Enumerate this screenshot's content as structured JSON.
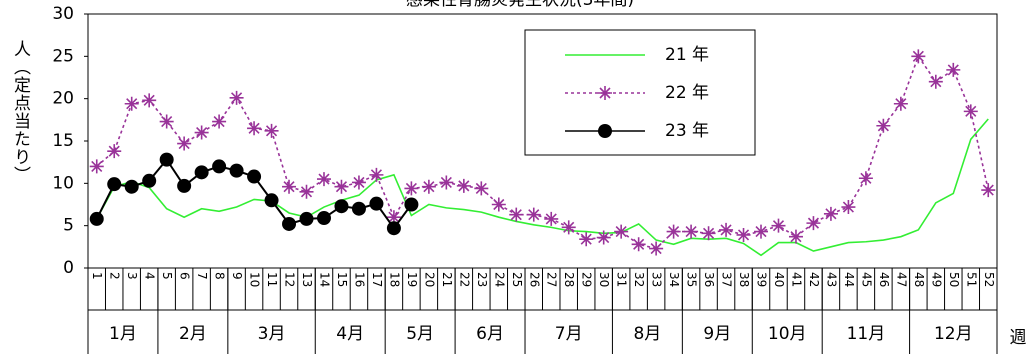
{
  "chart_data": {
    "type": "line",
    "title": "感染性胃腸炎発生状況(3年間)",
    "y_label": "人（定点当たり）",
    "x_label": "週",
    "categories": [
      "1",
      "2",
      "3",
      "4",
      "5",
      "6",
      "7",
      "8",
      "9",
      "10",
      "11",
      "12",
      "13",
      "14",
      "15",
      "16",
      "17",
      "18",
      "19",
      "20",
      "21",
      "22",
      "23",
      "24",
      "25",
      "26",
      "27",
      "28",
      "29",
      "30",
      "31",
      "32",
      "33",
      "34",
      "35",
      "36",
      "37",
      "38",
      "39",
      "40",
      "41",
      "42",
      "43",
      "44",
      "45",
      "46",
      "47",
      "48",
      "49",
      "50",
      "51",
      "52"
    ],
    "months": [
      "1月",
      null,
      null,
      null,
      "2月",
      null,
      null,
      null,
      "3月",
      null,
      null,
      null,
      null,
      "4月",
      null,
      null,
      null,
      "5月",
      null,
      null,
      null,
      "6月",
      null,
      null,
      null,
      "7月",
      null,
      null,
      null,
      null,
      "8月",
      null,
      null,
      null,
      "9月",
      null,
      null,
      null,
      "10月",
      null,
      null,
      null,
      "11月",
      null,
      null,
      null,
      null,
      "12月",
      null,
      null,
      null,
      null
    ],
    "ylim": [
      0,
      30
    ],
    "yticks": [
      0,
      5,
      10,
      15,
      20,
      25,
      30
    ],
    "series": [
      {
        "name": "21 年",
        "color": "#33ee33",
        "marker": "none",
        "values": [
          5.8,
          9.6,
          10.2,
          9.5,
          7,
          6,
          7,
          6.7,
          7.2,
          8.1,
          7.9,
          6.5,
          6,
          7.2,
          8,
          8.6,
          10.4,
          11,
          6.2,
          7.5,
          7.1,
          6.9,
          6.6,
          6,
          5.5,
          5.1,
          4.8,
          4.4,
          4.3,
          4.1,
          4.2,
          5.2,
          3.3,
          2.8,
          3.5,
          3.4,
          3.5,
          2.9,
          1.5,
          3,
          3,
          2,
          2.5,
          3,
          3.1,
          3.3,
          3.7,
          4.5,
          7.7,
          8.8,
          15.2,
          17.6
        ]
      },
      {
        "name": "22 年",
        "color": "#993399",
        "marker": "star",
        "dash": true,
        "values": [
          12,
          13.8,
          19.4,
          19.8,
          17.3,
          14.7,
          16,
          17.3,
          20.1,
          16.5,
          16.2,
          9.6,
          9,
          10.5,
          9.6,
          10.1,
          11,
          6,
          9.4,
          9.6,
          10.1,
          9.7,
          9.4,
          7.5,
          6.3,
          6.3,
          5.8,
          4.8,
          3.4,
          3.6,
          4.3,
          2.8,
          2.3,
          4.3,
          4.3,
          4.1,
          4.5,
          3.9,
          4.3,
          5,
          3.7,
          5.3,
          6.4,
          7.2,
          10.6,
          16.8,
          19.4,
          25,
          22,
          23.4,
          18.5,
          9.2
        ]
      },
      {
        "name": "23 年",
        "color": "#000000",
        "marker": "circle",
        "values": [
          5.8,
          9.9,
          9.6,
          10.3,
          12.8,
          9.7,
          11.3,
          12,
          11.5,
          10.8,
          8,
          5.2,
          5.8,
          5.9,
          7.3,
          7,
          7.6,
          4.7,
          7.5,
          null,
          null,
          null,
          null,
          null,
          null,
          null,
          null,
          null,
          null,
          null,
          null,
          null,
          null,
          null,
          null,
          null,
          null,
          null,
          null,
          null,
          null,
          null,
          null,
          null,
          null,
          null,
          null,
          null,
          null,
          null,
          null,
          null
        ]
      }
    ]
  }
}
